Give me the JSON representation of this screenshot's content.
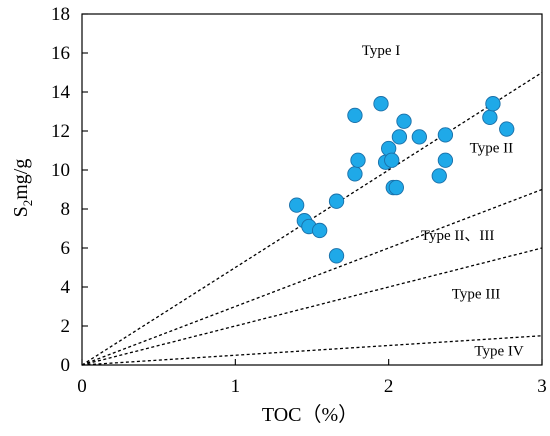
{
  "chart_data": {
    "type": "scatter",
    "title": "",
    "xlabel": "TOC（%）",
    "ylabel_main": "S",
    "ylabel_sub": "2",
    "ylabel_rest": "mg/g",
    "xlim": [
      0,
      3
    ],
    "ylim": [
      0,
      18
    ],
    "x_ticks": [
      0,
      1,
      2,
      3
    ],
    "y_ticks": [
      0,
      2,
      4,
      6,
      8,
      10,
      12,
      14,
      16,
      18
    ],
    "grid": false,
    "marker_color": "#1fa9e8",
    "marker_edge_color": "#1a6fa8",
    "points": [
      {
        "x": 1.4,
        "y": 8.2
      },
      {
        "x": 1.45,
        "y": 7.4
      },
      {
        "x": 1.48,
        "y": 7.1
      },
      {
        "x": 1.55,
        "y": 6.9
      },
      {
        "x": 1.66,
        "y": 5.6
      },
      {
        "x": 1.66,
        "y": 8.4
      },
      {
        "x": 1.78,
        "y": 12.8
      },
      {
        "x": 1.78,
        "y": 9.8
      },
      {
        "x": 1.8,
        "y": 10.5
      },
      {
        "x": 1.95,
        "y": 13.4
      },
      {
        "x": 1.98,
        "y": 10.4
      },
      {
        "x": 2.0,
        "y": 11.1
      },
      {
        "x": 2.02,
        "y": 10.5
      },
      {
        "x": 2.03,
        "y": 9.1
      },
      {
        "x": 2.05,
        "y": 9.1
      },
      {
        "x": 2.07,
        "y": 11.7
      },
      {
        "x": 2.1,
        "y": 12.5
      },
      {
        "x": 2.2,
        "y": 11.7
      },
      {
        "x": 2.33,
        "y": 9.7
      },
      {
        "x": 2.37,
        "y": 11.8
      },
      {
        "x": 2.37,
        "y": 10.5
      },
      {
        "x": 2.66,
        "y": 12.7
      },
      {
        "x": 2.68,
        "y": 13.4
      },
      {
        "x": 2.77,
        "y": 12.1
      }
    ],
    "boundary_lines": [
      {
        "slope": 5.0
      },
      {
        "slope": 3.0
      },
      {
        "slope": 2.0
      },
      {
        "slope": 0.5
      }
    ],
    "annotations": [
      {
        "text": "Type I",
        "x": 1.95,
        "y": 15.9
      },
      {
        "text": "Type II",
        "x": 2.67,
        "y": 10.9
      },
      {
        "text": "Type II、III",
        "x": 2.45,
        "y": 6.4
      },
      {
        "text": "Type III",
        "x": 2.57,
        "y": 3.4
      },
      {
        "text": "Type IV",
        "x": 2.72,
        "y": 0.5
      }
    ]
  }
}
